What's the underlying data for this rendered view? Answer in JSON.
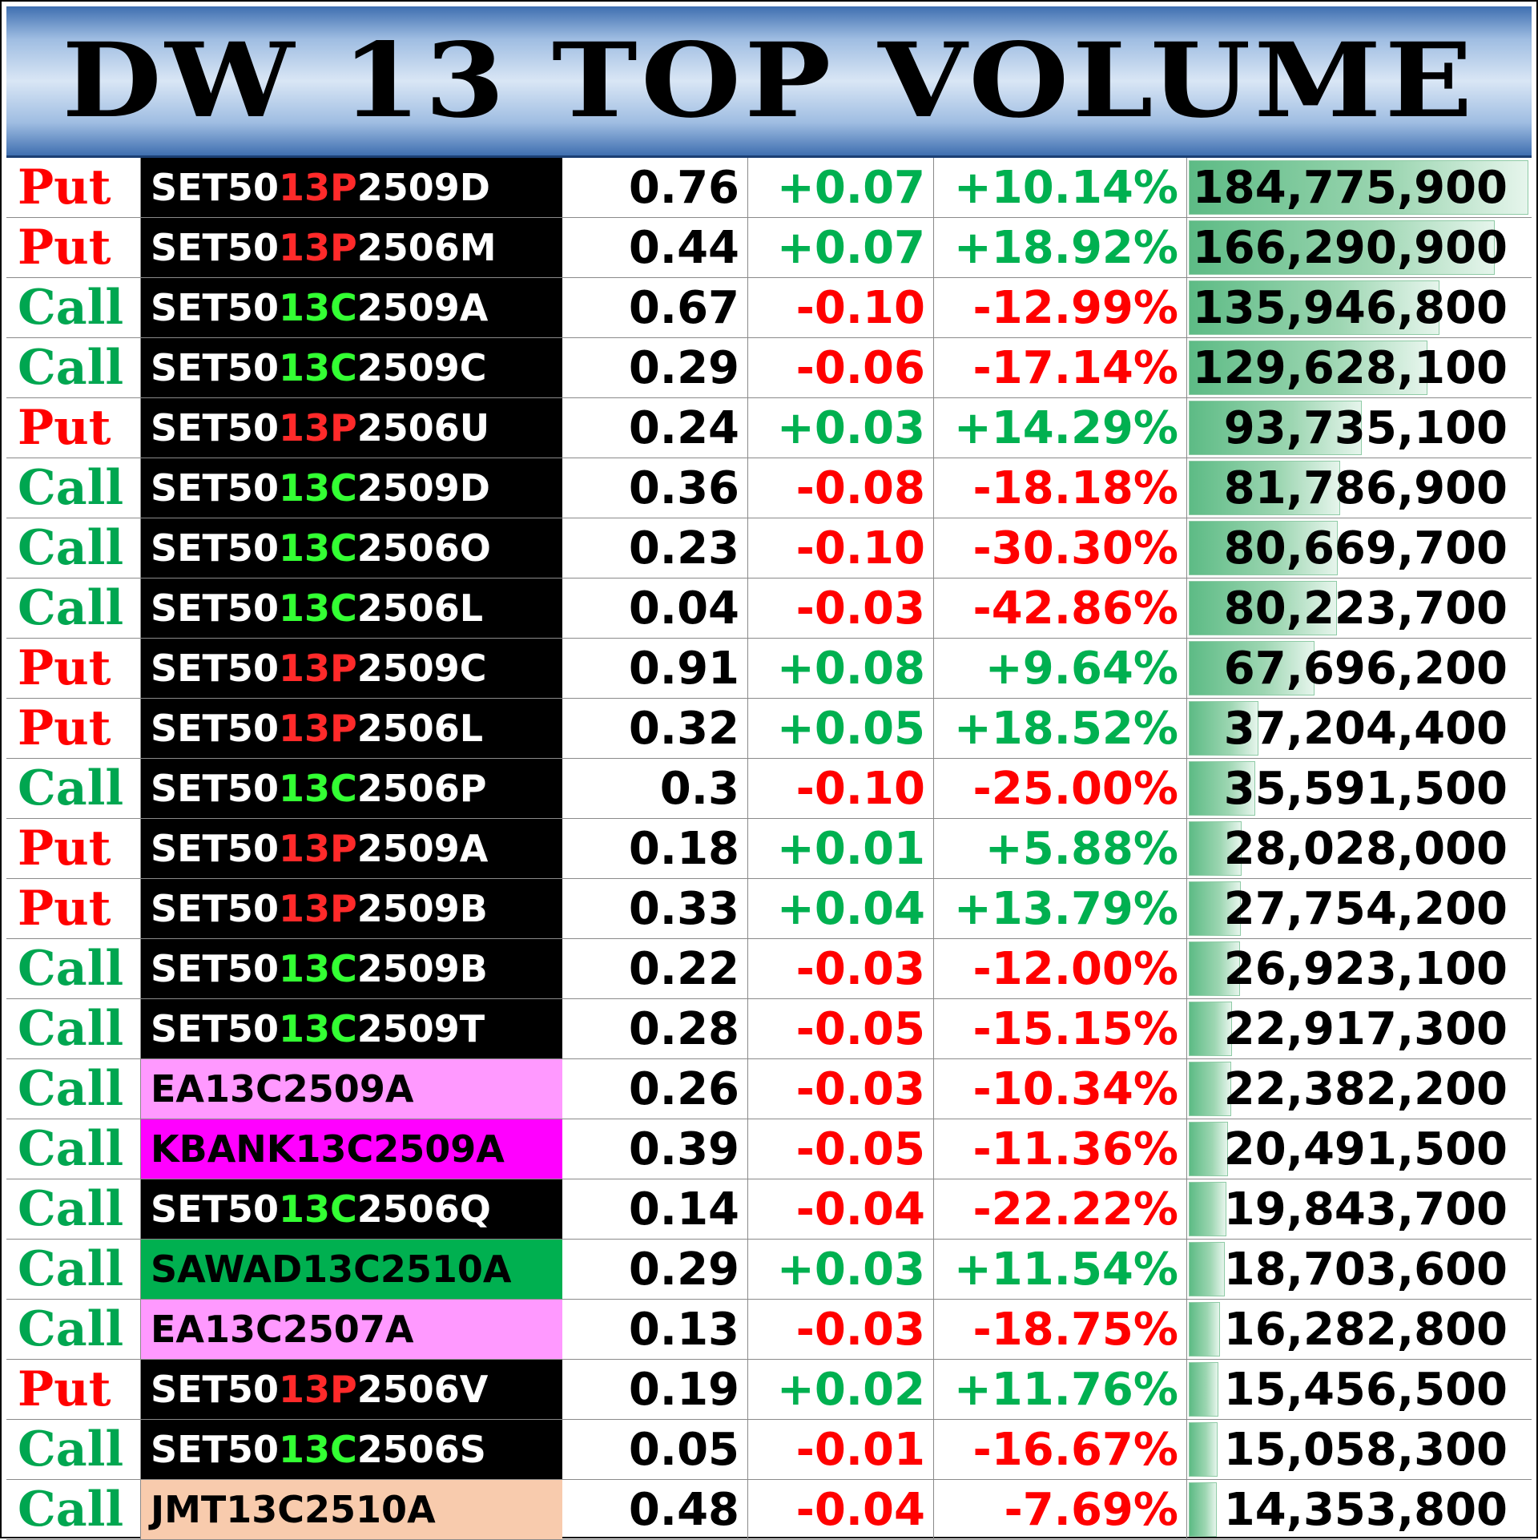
{
  "title": "DW 13 TOP VOLUME",
  "colors": {
    "put": "#ff0000",
    "call": "#00a650",
    "negative": "#ff0000",
    "positive": "#00b050",
    "volume_bar": "#5dbb85",
    "header_band": "#3f6fb0"
  },
  "volume_max": 184775900,
  "rows": [
    {
      "type": "Put",
      "sym_pre": "SET50",
      "sym_mid": "13P",
      "sym_post": "2509D",
      "sym_bg": "#000000",
      "sym_fg": "#ffffff",
      "price": "0.76",
      "change": "+0.07",
      "pct": "+10.14%",
      "volume": "184,775,900",
      "volume_num": 184775900
    },
    {
      "type": "Put",
      "sym_pre": "SET50",
      "sym_mid": "13P",
      "sym_post": "2506M",
      "sym_bg": "#000000",
      "sym_fg": "#ffffff",
      "price": "0.44",
      "change": "+0.07",
      "pct": "+18.92%",
      "volume": "166,290,900",
      "volume_num": 166290900
    },
    {
      "type": "Call",
      "sym_pre": "SET50",
      "sym_mid": "13C",
      "sym_post": "2509A",
      "sym_bg": "#000000",
      "sym_fg": "#ffffff",
      "price": "0.67",
      "change": "-0.10",
      "pct": "-12.99%",
      "volume": "135,946,800",
      "volume_num": 135946800
    },
    {
      "type": "Call",
      "sym_pre": "SET50",
      "sym_mid": "13C",
      "sym_post": "2509C",
      "sym_bg": "#000000",
      "sym_fg": "#ffffff",
      "price": "0.29",
      "change": "-0.06",
      "pct": "-17.14%",
      "volume": "129,628,100",
      "volume_num": 129628100
    },
    {
      "type": "Put",
      "sym_pre": "SET50",
      "sym_mid": "13P",
      "sym_post": "2506U",
      "sym_bg": "#000000",
      "sym_fg": "#ffffff",
      "price": "0.24",
      "change": "+0.03",
      "pct": "+14.29%",
      "volume": "93,735,100",
      "volume_num": 93735100
    },
    {
      "type": "Call",
      "sym_pre": "SET50",
      "sym_mid": "13C",
      "sym_post": "2509D",
      "sym_bg": "#000000",
      "sym_fg": "#ffffff",
      "price": "0.36",
      "change": "-0.08",
      "pct": "-18.18%",
      "volume": "81,786,900",
      "volume_num": 81786900
    },
    {
      "type": "Call",
      "sym_pre": "SET50",
      "sym_mid": "13C",
      "sym_post": "2506O",
      "sym_bg": "#000000",
      "sym_fg": "#ffffff",
      "price": "0.23",
      "change": "-0.10",
      "pct": "-30.30%",
      "volume": "80,669,700",
      "volume_num": 80669700
    },
    {
      "type": "Call",
      "sym_pre": "SET50",
      "sym_mid": "13C",
      "sym_post": "2506L",
      "sym_bg": "#000000",
      "sym_fg": "#ffffff",
      "price": "0.04",
      "change": "-0.03",
      "pct": "-42.86%",
      "volume": "80,223,700",
      "volume_num": 80223700
    },
    {
      "type": "Put",
      "sym_pre": "SET50",
      "sym_mid": "13P",
      "sym_post": "2509C",
      "sym_bg": "#000000",
      "sym_fg": "#ffffff",
      "price": "0.91",
      "change": "+0.08",
      "pct": "+9.64%",
      "volume": "67,696,200",
      "volume_num": 67696200
    },
    {
      "type": "Put",
      "sym_pre": "SET50",
      "sym_mid": "13P",
      "sym_post": "2506L",
      "sym_bg": "#000000",
      "sym_fg": "#ffffff",
      "price": "0.32",
      "change": "+0.05",
      "pct": "+18.52%",
      "volume": "37,204,400",
      "volume_num": 37204400
    },
    {
      "type": "Call",
      "sym_pre": "SET50",
      "sym_mid": "13C",
      "sym_post": "2506P",
      "sym_bg": "#000000",
      "sym_fg": "#ffffff",
      "price": "0.3",
      "change": "-0.10",
      "pct": "-25.00%",
      "volume": "35,591,500",
      "volume_num": 35591500
    },
    {
      "type": "Put",
      "sym_pre": "SET50",
      "sym_mid": "13P",
      "sym_post": "2509A",
      "sym_bg": "#000000",
      "sym_fg": "#ffffff",
      "price": "0.18",
      "change": "+0.01",
      "pct": "+5.88%",
      "volume": "28,028,000",
      "volume_num": 28028000
    },
    {
      "type": "Put",
      "sym_pre": "SET50",
      "sym_mid": "13P",
      "sym_post": "2509B",
      "sym_bg": "#000000",
      "sym_fg": "#ffffff",
      "price": "0.33",
      "change": "+0.04",
      "pct": "+13.79%",
      "volume": "27,754,200",
      "volume_num": 27754200
    },
    {
      "type": "Call",
      "sym_pre": "SET50",
      "sym_mid": "13C",
      "sym_post": "2509B",
      "sym_bg": "#000000",
      "sym_fg": "#ffffff",
      "price": "0.22",
      "change": "-0.03",
      "pct": "-12.00%",
      "volume": "26,923,100",
      "volume_num": 26923100
    },
    {
      "type": "Call",
      "sym_pre": "SET50",
      "sym_mid": "13C",
      "sym_post": "2509T",
      "sym_bg": "#000000",
      "sym_fg": "#ffffff",
      "price": "0.28",
      "change": "-0.05",
      "pct": "-15.15%",
      "volume": "22,917,300",
      "volume_num": 22917300
    },
    {
      "type": "Call",
      "sym_pre": "EA13C2509A",
      "sym_mid": "",
      "sym_post": "",
      "sym_bg": "#ff99ff",
      "sym_fg": "#000000",
      "price": "0.26",
      "change": "-0.03",
      "pct": "-10.34%",
      "volume": "22,382,200",
      "volume_num": 22382200
    },
    {
      "type": "Call",
      "sym_pre": "KBANK13C2509A",
      "sym_mid": "",
      "sym_post": "",
      "sym_bg": "#ff00ff",
      "sym_fg": "#000000",
      "price": "0.39",
      "change": "-0.05",
      "pct": "-11.36%",
      "volume": "20,491,500",
      "volume_num": 20491500
    },
    {
      "type": "Call",
      "sym_pre": "SET50",
      "sym_mid": "13C",
      "sym_post": "2506Q",
      "sym_bg": "#000000",
      "sym_fg": "#ffffff",
      "price": "0.14",
      "change": "-0.04",
      "pct": "-22.22%",
      "volume": "19,843,700",
      "volume_num": 19843700
    },
    {
      "type": "Call",
      "sym_pre": "SAWAD13C2510A",
      "sym_mid": "",
      "sym_post": "",
      "sym_bg": "#00b050",
      "sym_fg": "#000000",
      "price": "0.29",
      "change": "+0.03",
      "pct": "+11.54%",
      "volume": "18,703,600",
      "volume_num": 18703600
    },
    {
      "type": "Call",
      "sym_pre": "EA13C2507A",
      "sym_mid": "",
      "sym_post": "",
      "sym_bg": "#ff99ff",
      "sym_fg": "#000000",
      "price": "0.13",
      "change": "-0.03",
      "pct": "-18.75%",
      "volume": "16,282,800",
      "volume_num": 16282800
    },
    {
      "type": "Put",
      "sym_pre": "SET50",
      "sym_mid": "13P",
      "sym_post": "2506V",
      "sym_bg": "#000000",
      "sym_fg": "#ffffff",
      "price": "0.19",
      "change": "+0.02",
      "pct": "+11.76%",
      "volume": "15,456,500",
      "volume_num": 15456500
    },
    {
      "type": "Call",
      "sym_pre": "SET50",
      "sym_mid": "13C",
      "sym_post": "2506S",
      "sym_bg": "#000000",
      "sym_fg": "#ffffff",
      "price": "0.05",
      "change": "-0.01",
      "pct": "-16.67%",
      "volume": "15,058,300",
      "volume_num": 15058300
    },
    {
      "type": "Call",
      "sym_pre": "JMT13C2510A",
      "sym_mid": "",
      "sym_post": "",
      "sym_bg": "#f8cbad",
      "sym_fg": "#000000",
      "price": "0.48",
      "change": "-0.04",
      "pct": "-7.69%",
      "volume": "14,353,800",
      "volume_num": 14353800
    }
  ]
}
